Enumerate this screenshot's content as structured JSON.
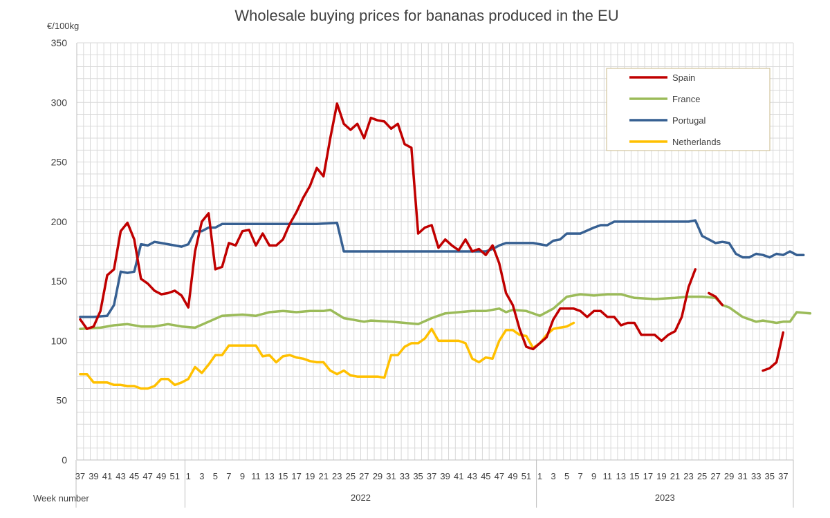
{
  "chart_data": {
    "type": "line",
    "title": "Wholesale buying prices for bananas produced in the EU",
    "ylabel": "€/100kg",
    "xlabel": "Week number",
    "ylim": [
      0,
      350
    ],
    "yticks": [
      0,
      50,
      100,
      150,
      200,
      250,
      300,
      350
    ],
    "grid": true,
    "x_start_week": 37,
    "x_count": 106,
    "x_tick_labels": [
      "37",
      "39",
      "41",
      "43",
      "45",
      "47",
      "49",
      "51",
      "1",
      "3",
      "5",
      "7",
      "9",
      "11",
      "13",
      "15",
      "17",
      "19",
      "21",
      "23",
      "25",
      "27",
      "29",
      "31",
      "33",
      "35",
      "37",
      "39",
      "41",
      "43",
      "45",
      "47",
      "49",
      "51",
      "1",
      "3",
      "5",
      "7",
      "9",
      "11",
      "13",
      "15",
      "17",
      "19",
      "21",
      "23",
      "25",
      "27",
      "29",
      "31",
      "33",
      "35",
      "37"
    ],
    "year_groups": [
      {
        "label": "2022",
        "start": 16,
        "end": 67
      },
      {
        "label": "2023",
        "start": 68,
        "end": 105
      }
    ],
    "legend": {
      "position": "top-right",
      "entries": [
        "Spain",
        "France",
        "Portugal",
        "Netherlands"
      ]
    },
    "series": [
      {
        "name": "Spain",
        "color": "#c00000",
        "points": [
          [
            0,
            118
          ],
          [
            1,
            110
          ],
          [
            2,
            112
          ],
          [
            3,
            125
          ],
          [
            4,
            155
          ],
          [
            5,
            160
          ],
          [
            6,
            192
          ],
          [
            7,
            199
          ],
          [
            8,
            185
          ],
          [
            9,
            152
          ],
          [
            10,
            148
          ],
          [
            11,
            142
          ],
          [
            12,
            139
          ],
          [
            13,
            140
          ],
          [
            14,
            142
          ],
          [
            15,
            138
          ],
          [
            16,
            128
          ],
          [
            17,
            175
          ],
          [
            18,
            200
          ],
          [
            19,
            207
          ],
          [
            20,
            160
          ],
          [
            21,
            162
          ],
          [
            22,
            182
          ],
          [
            23,
            180
          ],
          [
            24,
            192
          ],
          [
            25,
            193
          ],
          [
            26,
            180
          ],
          [
            27,
            190
          ],
          [
            28,
            180
          ],
          [
            29,
            180
          ],
          [
            30,
            185
          ],
          [
            31,
            198
          ],
          [
            32,
            208
          ],
          [
            33,
            220
          ],
          [
            34,
            230
          ],
          [
            35,
            245
          ],
          [
            36,
            238
          ],
          [
            37,
            270
          ],
          [
            38,
            299
          ],
          [
            39,
            282
          ],
          [
            40,
            277
          ],
          [
            41,
            282
          ],
          [
            42,
            270
          ],
          [
            43,
            287
          ],
          [
            44,
            285
          ],
          [
            45,
            284
          ],
          [
            46,
            278
          ],
          [
            47,
            282
          ],
          [
            48,
            265
          ],
          [
            49,
            262
          ],
          [
            50,
            190
          ],
          [
            51,
            195
          ],
          [
            52,
            197
          ],
          [
            53,
            178
          ],
          [
            54,
            185
          ],
          [
            55,
            180
          ],
          [
            56,
            176
          ],
          [
            57,
            185
          ],
          [
            58,
            175
          ],
          [
            59,
            177
          ],
          [
            60,
            172
          ],
          [
            61,
            180
          ],
          [
            62,
            165
          ],
          [
            63,
            140
          ],
          [
            64,
            130
          ],
          [
            65,
            110
          ],
          [
            66,
            95
          ],
          [
            67,
            93
          ],
          [
            68,
            98
          ],
          [
            69,
            103
          ],
          [
            70,
            118
          ],
          [
            71,
            127
          ],
          [
            72,
            127
          ],
          [
            73,
            127
          ],
          [
            74,
            125
          ],
          [
            75,
            120
          ],
          [
            76,
            125
          ],
          [
            77,
            125
          ],
          [
            78,
            120
          ],
          [
            79,
            120
          ],
          [
            80,
            113
          ],
          [
            81,
            115
          ],
          [
            82,
            115
          ],
          [
            83,
            105
          ],
          [
            84,
            105
          ],
          [
            85,
            105
          ],
          [
            86,
            100
          ],
          [
            87,
            105
          ],
          [
            88,
            108
          ],
          [
            89,
            120
          ],
          [
            90,
            145
          ],
          [
            91,
            160
          ],
          [
            null,
            null
          ],
          [
            93,
            140
          ],
          [
            94,
            137
          ],
          [
            95,
            130
          ],
          [
            null,
            null
          ],
          [
            101,
            75
          ],
          [
            102,
            77
          ],
          [
            103,
            82
          ],
          [
            104,
            107
          ]
        ]
      },
      {
        "name": "France",
        "color": "#9bbb59",
        "points": [
          [
            0,
            110
          ],
          [
            3,
            111
          ],
          [
            5,
            113
          ],
          [
            7,
            114
          ],
          [
            9,
            112
          ],
          [
            11,
            112
          ],
          [
            13,
            114
          ],
          [
            15,
            112
          ],
          [
            17,
            111
          ],
          [
            19,
            116
          ],
          [
            21,
            121
          ],
          [
            24,
            122
          ],
          [
            26,
            121
          ],
          [
            28,
            124
          ],
          [
            30,
            125
          ],
          [
            32,
            124
          ],
          [
            34,
            125
          ],
          [
            36,
            125
          ],
          [
            37,
            126
          ],
          [
            39,
            119
          ],
          [
            42,
            116
          ],
          [
            43,
            117
          ],
          [
            46,
            116
          ],
          [
            48,
            115
          ],
          [
            50,
            114
          ],
          [
            52,
            119
          ],
          [
            54,
            123
          ],
          [
            56,
            124
          ],
          [
            58,
            125
          ],
          [
            60,
            125
          ],
          [
            62,
            127
          ],
          [
            63,
            124
          ],
          [
            64,
            126
          ],
          [
            66,
            125
          ],
          [
            68,
            121
          ],
          [
            70,
            127
          ],
          [
            72,
            137
          ],
          [
            74,
            139
          ],
          [
            76,
            138
          ],
          [
            78,
            139
          ],
          [
            80,
            139
          ],
          [
            82,
            136
          ],
          [
            85,
            135
          ],
          [
            88,
            136
          ],
          [
            90,
            137
          ],
          [
            92,
            137
          ],
          [
            94,
            136
          ],
          [
            95,
            130
          ],
          [
            96,
            128
          ],
          [
            98,
            120
          ],
          [
            100,
            116
          ],
          [
            101,
            117
          ],
          [
            103,
            115
          ],
          [
            104,
            116
          ],
          [
            105,
            116
          ],
          [
            106,
            124
          ],
          [
            108,
            123
          ]
        ]
      },
      {
        "name": "Portugal",
        "color": "#376092",
        "points": [
          [
            0,
            120
          ],
          [
            2,
            120
          ],
          [
            4,
            121
          ],
          [
            5,
            130
          ],
          [
            6,
            158
          ],
          [
            7,
            157
          ],
          [
            8,
            158
          ],
          [
            9,
            181
          ],
          [
            10,
            180
          ],
          [
            11,
            183
          ],
          [
            12,
            182
          ],
          [
            14,
            180
          ],
          [
            15,
            179
          ],
          [
            16,
            181
          ],
          [
            17,
            192
          ],
          [
            18,
            192
          ],
          [
            19,
            195
          ],
          [
            20,
            195
          ],
          [
            21,
            198
          ],
          [
            25,
            198
          ],
          [
            30,
            198
          ],
          [
            35,
            198
          ],
          [
            38,
            199
          ],
          [
            39,
            175
          ],
          [
            40,
            175
          ],
          [
            45,
            175
          ],
          [
            50,
            175
          ],
          [
            55,
            175
          ],
          [
            60,
            175
          ],
          [
            61,
            177
          ],
          [
            62,
            180
          ],
          [
            63,
            182
          ],
          [
            67,
            182
          ],
          [
            69,
            180
          ],
          [
            70,
            184
          ],
          [
            71,
            185
          ],
          [
            72,
            190
          ],
          [
            74,
            190
          ],
          [
            76,
            195
          ],
          [
            77,
            197
          ],
          [
            78,
            197
          ],
          [
            79,
            200
          ],
          [
            82,
            200
          ],
          [
            86,
            200
          ],
          [
            90,
            200
          ],
          [
            91,
            201
          ],
          [
            92,
            188
          ],
          [
            93,
            185
          ],
          [
            94,
            182
          ],
          [
            95,
            183
          ],
          [
            96,
            182
          ],
          [
            97,
            173
          ],
          [
            98,
            170
          ],
          [
            99,
            170
          ],
          [
            100,
            173
          ],
          [
            101,
            172
          ],
          [
            102,
            170
          ],
          [
            103,
            173
          ],
          [
            104,
            172
          ],
          [
            105,
            175
          ],
          [
            106,
            172
          ],
          [
            107,
            172
          ]
        ]
      },
      {
        "name": "Netherlands",
        "color": "#ffc000",
        "points": [
          [
            0,
            72
          ],
          [
            1,
            72
          ],
          [
            2,
            65
          ],
          [
            3,
            65
          ],
          [
            4,
            65
          ],
          [
            5,
            63
          ],
          [
            6,
            63
          ],
          [
            7,
            62
          ],
          [
            8,
            62
          ],
          [
            9,
            60
          ],
          [
            10,
            60
          ],
          [
            11,
            62
          ],
          [
            12,
            68
          ],
          [
            13,
            68
          ],
          [
            14,
            63
          ],
          [
            15,
            65
          ],
          [
            16,
            68
          ],
          [
            17,
            78
          ],
          [
            18,
            73
          ],
          [
            19,
            80
          ],
          [
            20,
            88
          ],
          [
            21,
            88
          ],
          [
            22,
            96
          ],
          [
            23,
            96
          ],
          [
            24,
            96
          ],
          [
            25,
            96
          ],
          [
            26,
            96
          ],
          [
            27,
            87
          ],
          [
            28,
            88
          ],
          [
            29,
            82
          ],
          [
            30,
            87
          ],
          [
            31,
            88
          ],
          [
            32,
            86
          ],
          [
            33,
            85
          ],
          [
            34,
            83
          ],
          [
            35,
            82
          ],
          [
            36,
            82
          ],
          [
            37,
            75
          ],
          [
            38,
            72
          ],
          [
            39,
            75
          ],
          [
            40,
            71
          ],
          [
            41,
            70
          ],
          [
            42,
            70
          ],
          [
            43,
            70
          ],
          [
            44,
            70
          ],
          [
            45,
            69
          ],
          [
            46,
            88
          ],
          [
            47,
            88
          ],
          [
            48,
            95
          ],
          [
            49,
            98
          ],
          [
            50,
            98
          ],
          [
            51,
            102
          ],
          [
            52,
            110
          ],
          [
            53,
            100
          ],
          [
            54,
            100
          ],
          [
            55,
            100
          ],
          [
            56,
            100
          ],
          [
            57,
            98
          ],
          [
            58,
            85
          ],
          [
            59,
            82
          ],
          [
            60,
            86
          ],
          [
            61,
            85
          ],
          [
            62,
            100
          ],
          [
            63,
            109
          ],
          [
            64,
            109
          ],
          [
            65,
            105
          ],
          [
            66,
            104
          ],
          [
            67,
            94
          ],
          [
            68,
            98
          ],
          [
            69,
            105
          ],
          [
            70,
            110
          ],
          [
            71,
            111
          ],
          [
            72,
            112
          ],
          [
            73,
            115
          ]
        ]
      }
    ]
  }
}
